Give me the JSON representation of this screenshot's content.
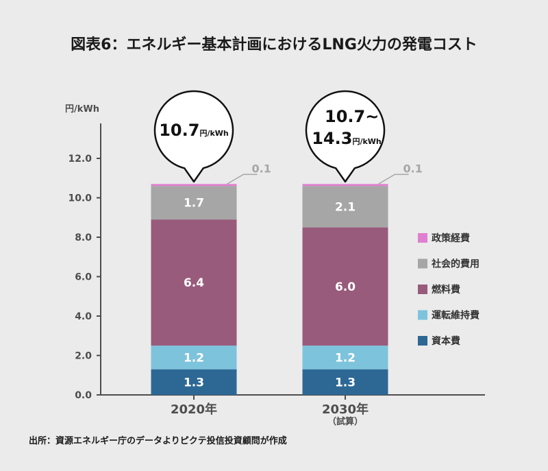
{
  "title": "図表6：エネルギー基本計画におけるLNG火力の発電コスト",
  "source": "出所：資源エネルギー庁のデータよりピクテ投信投資顧問が作成",
  "colors": {
    "政策経費": "#e07fd0",
    "社会的費用": "#a6a6a6",
    "燃料費": "#985b7c",
    "運転維持費": "#7ec3dc",
    "資本費": "#2d6895",
    "axis": "#4d4d4d"
  },
  "chart_data": {
    "type": "bar",
    "stacked": true,
    "categories": [
      "2020年",
      "2030年"
    ],
    "category_notes": [
      "",
      "（試算）"
    ],
    "ylabel": "円/kWh",
    "ylim": [
      0,
      13.5
    ],
    "yticks": [
      "0.0",
      "2.0",
      "4.0",
      "6.0",
      "8.0",
      "10.0",
      "12.0"
    ],
    "ytick_values": [
      0,
      2,
      4,
      6,
      8,
      10,
      12
    ],
    "series": [
      {
        "name": "資本費",
        "values": [
          1.3,
          1.3
        ],
        "labels": [
          "1.3",
          "1.3"
        ]
      },
      {
        "name": "運転維持費",
        "values": [
          1.2,
          1.2
        ],
        "labels": [
          "1.2",
          "1.2"
        ]
      },
      {
        "name": "燃料費",
        "values": [
          6.4,
          6.0
        ],
        "labels": [
          "6.4",
          "6.0"
        ]
      },
      {
        "name": "社会的費用",
        "values": [
          1.7,
          2.1
        ],
        "labels": [
          "1.7",
          "2.1"
        ]
      },
      {
        "name": "政策経費",
        "values": [
          0.1,
          0.1
        ],
        "labels": [
          "0.1",
          "0.1"
        ]
      }
    ],
    "legend_order": [
      "政策経費",
      "社会的費用",
      "燃料費",
      "運転維持費",
      "資本費"
    ],
    "legend_position": "right",
    "totals": [
      {
        "lines": [
          "10.7"
        ],
        "unit": "円/kWh"
      },
      {
        "lines": [
          "10.7~",
          "14.3"
        ],
        "unit": "円/kWh"
      }
    ]
  }
}
